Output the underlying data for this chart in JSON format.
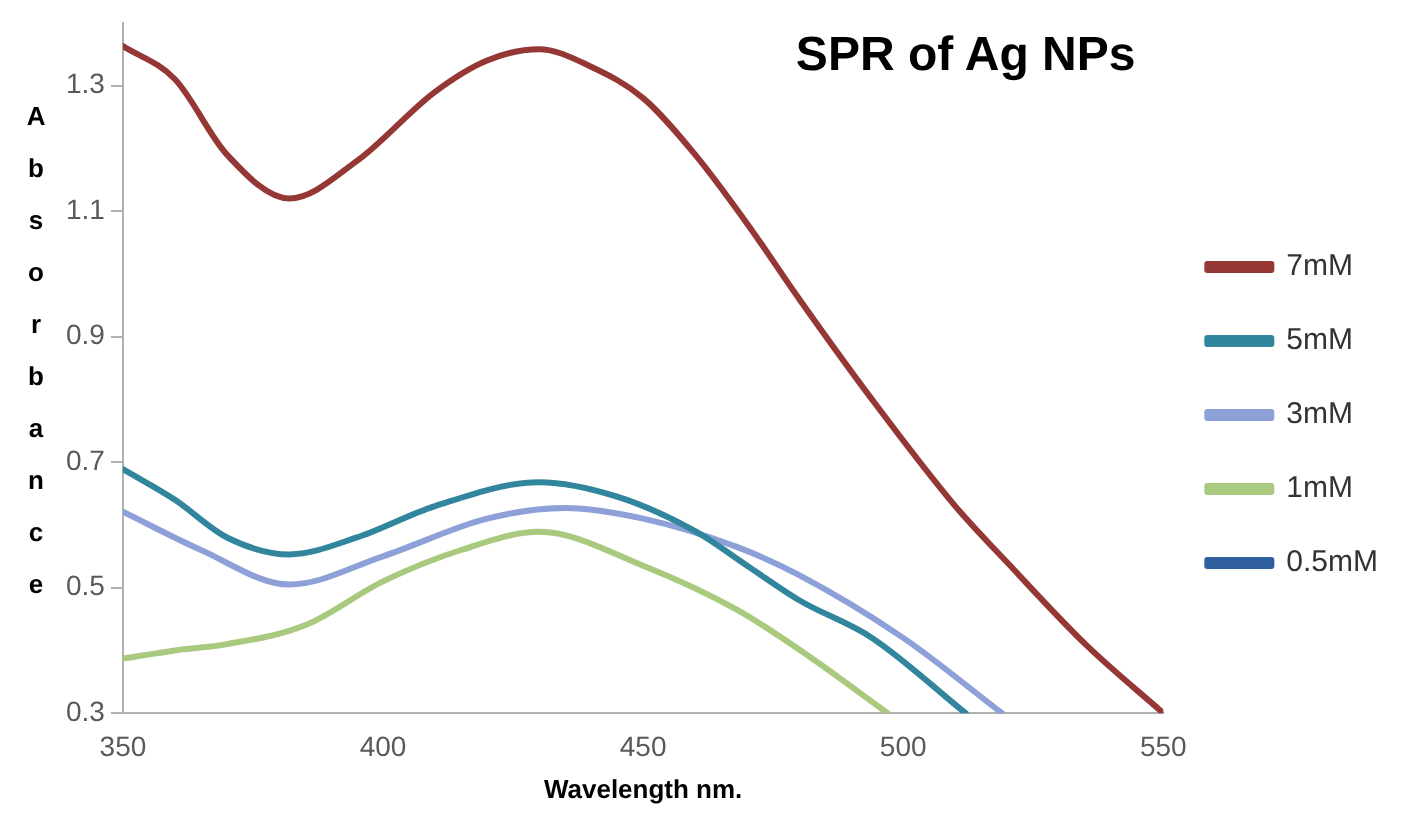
{
  "chart_data": {
    "type": "line",
    "title": "SPR of Ag NPs",
    "xlabel": "Wavelength nm.",
    "ylabel": "Absorbance",
    "xlim": [
      350,
      550
    ],
    "xticks": [
      350,
      400,
      450,
      500,
      550
    ],
    "ylim": [
      0.3,
      1.4
    ],
    "yticks": [
      0.3,
      0.5,
      0.7,
      0.9,
      1.1,
      1.3
    ],
    "grid": false,
    "legend": "right",
    "marker": "none",
    "line_style": "solid",
    "series": [
      {
        "name": "7mM",
        "color": "#953735",
        "x": [
          350,
          360,
          370,
          382,
          395,
          410,
          420,
          430,
          440,
          450,
          460,
          470,
          480,
          494,
          510,
          520,
          535,
          550
        ],
        "values": [
          1.363,
          1.31,
          1.19,
          1.12,
          1.18,
          1.29,
          1.34,
          1.358,
          1.33,
          1.28,
          1.19,
          1.08,
          0.96,
          0.8,
          0.63,
          0.54,
          0.41,
          0.3
        ]
      },
      {
        "name": "5mM",
        "color": "#31859c",
        "x": [
          350,
          360,
          370,
          382,
          395,
          410,
          430,
          445,
          460,
          470,
          480,
          494,
          512
        ],
        "values": [
          0.689,
          0.64,
          0.58,
          0.553,
          0.58,
          0.63,
          0.668,
          0.645,
          0.59,
          0.535,
          0.48,
          0.42,
          0.3
        ]
      },
      {
        "name": "3mM",
        "color": "#8ea0d8",
        "x": [
          350,
          365,
          382,
          400,
          420,
          435,
          450,
          468,
          480,
          500,
          519
        ],
        "values": [
          0.621,
          0.56,
          0.505,
          0.55,
          0.61,
          0.627,
          0.61,
          0.565,
          0.52,
          0.42,
          0.3
        ]
      },
      {
        "name": "1mM",
        "color": "#a9c97f",
        "x": [
          350,
          360,
          370,
          385,
          400,
          415,
          430,
          450,
          468,
          482,
          497
        ],
        "values": [
          0.387,
          0.4,
          0.41,
          0.44,
          0.51,
          0.56,
          0.589,
          0.535,
          0.465,
          0.39,
          0.3
        ]
      },
      {
        "name": "0.5mM",
        "color": "#2f5f9f"
      }
    ]
  }
}
